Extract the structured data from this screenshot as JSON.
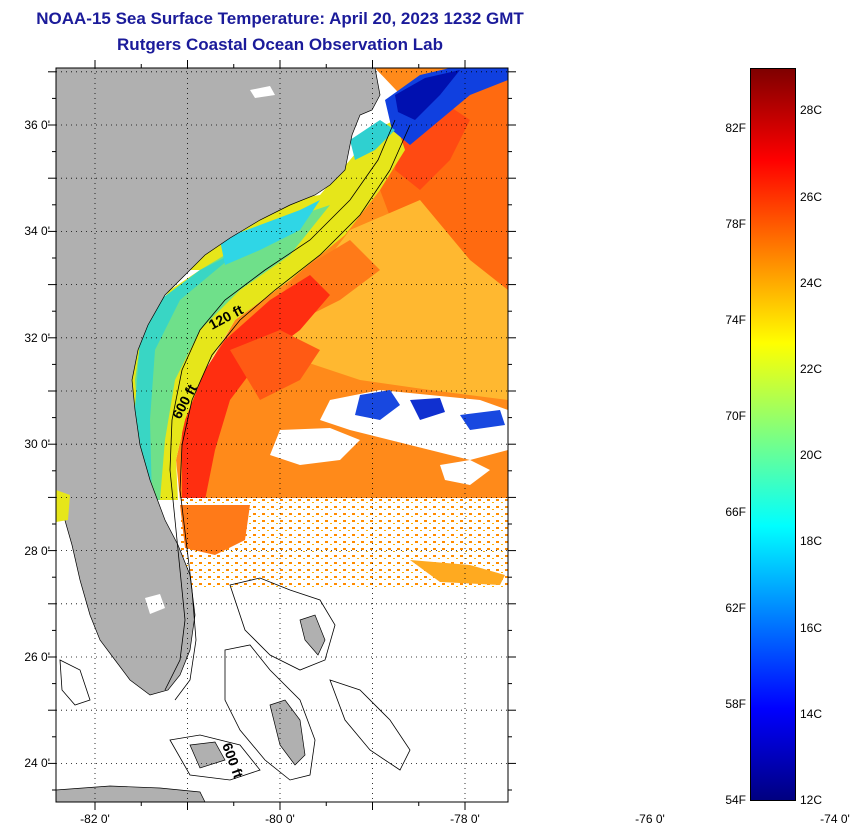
{
  "title_line1": "NOAA-15 Sea Surface Temperature:  April 20, 2023 1232 GMT",
  "title_line2": "Rutgers Coastal Ocean Observation Lab",
  "map": {
    "lat_labels": [
      {
        "value": 36,
        "text": "36 0'"
      },
      {
        "value": 34,
        "text": "34 0'"
      },
      {
        "value": 32,
        "text": "32 0'"
      },
      {
        "value": 30,
        "text": "30 0'"
      },
      {
        "value": 28,
        "text": "28 0'"
      },
      {
        "value": 26,
        "text": "26 0'"
      },
      {
        "value": 24,
        "text": "24 0'"
      }
    ],
    "lon_labels": [
      {
        "value": -82,
        "text": "-82 0'"
      },
      {
        "value": -80,
        "text": "-80 0'"
      },
      {
        "value": -78,
        "text": "-78 0'"
      },
      {
        "value": -76,
        "text": "-76 0'"
      },
      {
        "value": -74,
        "text": "-74 0'"
      }
    ],
    "contour_labels": [
      "120 ft",
      "600 ft",
      "600 ft"
    ]
  },
  "colorbar": {
    "colors": [
      "#000080",
      "#0000ff",
      "#007fff",
      "#00ffff",
      "#7fff7f",
      "#ffff00",
      "#ff7f00",
      "#ff0000",
      "#7f0000"
    ],
    "fahrenheit": [
      "54F",
      "58F",
      "62F",
      "66F",
      "70F",
      "74F",
      "78F",
      "82F"
    ],
    "celsius": [
      "12C",
      "14C",
      "16C",
      "18C",
      "20C",
      "22C",
      "24C",
      "26C",
      "28C"
    ]
  }
}
